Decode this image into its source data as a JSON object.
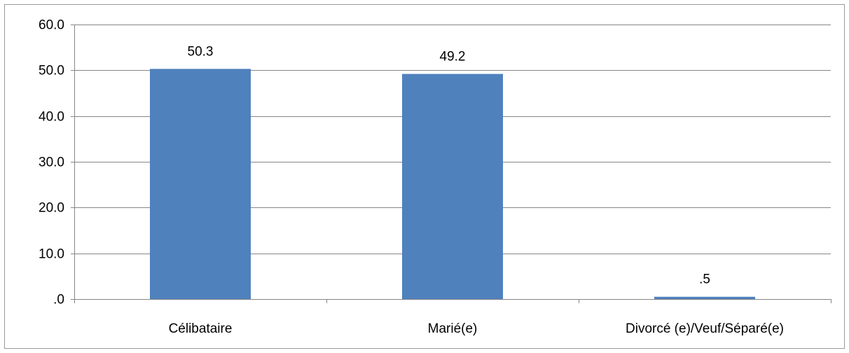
{
  "chart_data": {
    "type": "bar",
    "categories": [
      "Célibataire",
      "Marié(e)",
      "Divorcé (e)/Veuf/Séparé(e)"
    ],
    "values": [
      50.3,
      49.2,
      0.5
    ],
    "value_labels": [
      "50.3",
      "49.2",
      ".5"
    ],
    "y_ticks": [
      0,
      10,
      20,
      30,
      40,
      50,
      60
    ],
    "y_tick_labels": [
      ".0",
      "10.0",
      "20.0",
      "30.0",
      "40.0",
      "50.0",
      "60.0"
    ],
    "ylim": [
      0,
      60
    ],
    "grid": true,
    "legend": "none",
    "bar_color": "#4f81bd",
    "grid_color": "#868686"
  }
}
